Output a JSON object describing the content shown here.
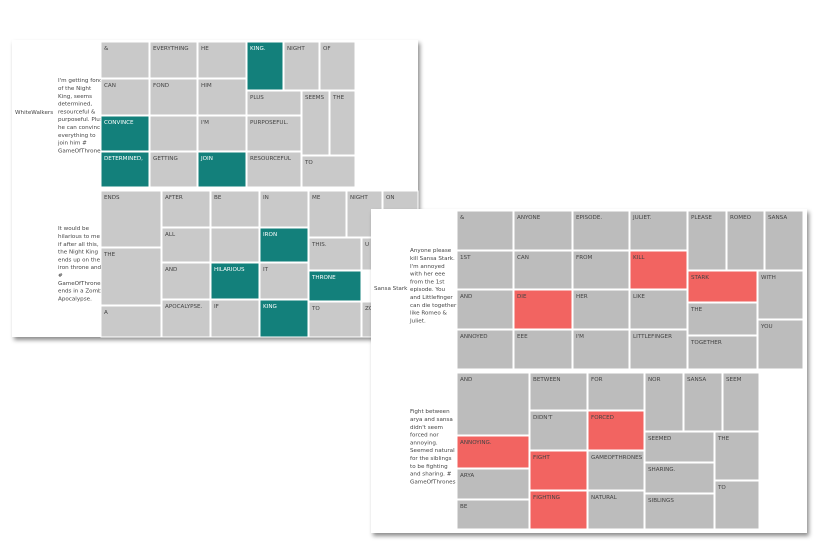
{
  "panels": [
    {
      "label": "WhiteWalkers",
      "groups": [
        {
          "tweet": [
            "I'm getting fond",
            "of the Night",
            "King, seems",
            "determined,",
            "resourceful &",
            "purposeful. Plus",
            "he can convince",
            "everything to",
            "join him #",
            "GameOfThrones"
          ],
          "words": [
            {
              "text": "&",
              "color": "#c9c9c9"
            },
            {
              "text": "EVERYTHING",
              "color": "#c9c9c9"
            },
            {
              "text": "HE",
              "color": "#c9c9c9"
            },
            {
              "text": "KING.",
              "color": "#13807b"
            },
            {
              "text": "NIGHT",
              "color": "#c9c9c9"
            },
            {
              "text": "OF",
              "color": "#c9c9c9"
            },
            {
              "text": "CAN",
              "color": "#c9c9c9"
            },
            {
              "text": "FOND",
              "color": "#c9c9c9"
            },
            {
              "text": "HIM",
              "color": "#c9c9c9"
            },
            {
              "text": "PLUS",
              "color": "#c9c9c9"
            },
            {
              "text": "SEEMS",
              "color": "#c9c9c9"
            },
            {
              "text": "THE",
              "color": "#c9c9c9"
            },
            {
              "text": "CONVINCE",
              "color": "#13807b"
            },
            {
              "text": "I'M",
              "color": "#c9c9c9"
            },
            {
              "text": "PURPOSEFUL.",
              "color": "#c9c9c9"
            },
            {
              "text": "DETERMINED,",
              "color": "#13807b"
            },
            {
              "text": "GETTING",
              "color": "#c9c9c9"
            },
            {
              "text": "JOIN",
              "color": "#13807b"
            },
            {
              "text": "RESOURCEFUL",
              "color": "#c9c9c9"
            },
            {
              "text": "TO",
              "color": "#c9c9c9"
            }
          ]
        },
        {
          "tweet": [
            "It would be",
            "hilarious to me",
            "if after all this,",
            "the Night King",
            "ends up on the",
            "iron throne and",
            "#",
            "GameOfThrones",
            "ends in a Zombie",
            "Apocalypse."
          ],
          "words": [
            {
              "text": "ENDS",
              "color": "#c9c9c9"
            },
            {
              "text": "AFTER",
              "color": "#c9c9c9"
            },
            {
              "text": "BE",
              "color": "#c9c9c9"
            },
            {
              "text": "IN",
              "color": "#c9c9c9"
            },
            {
              "text": "ME",
              "color": "#c9c9c9"
            },
            {
              "text": "NIGHT",
              "color": "#c9c9c9"
            },
            {
              "text": "ON",
              "color": "#c9c9c9"
            },
            {
              "text": "THE",
              "color": "#c9c9c9"
            },
            {
              "text": "ALL",
              "color": "#c9c9c9"
            },
            {
              "text": "IRON",
              "color": "#13807b"
            },
            {
              "text": "THIS.",
              "color": "#c9c9c9"
            },
            {
              "text": "U",
              "color": "#c9c9c9"
            },
            {
              "text": "AND",
              "color": "#c9c9c9"
            },
            {
              "text": "HILARIOUS",
              "color": "#13807b"
            },
            {
              "text": "IT",
              "color": "#c9c9c9"
            },
            {
              "text": "THRONE",
              "color": "#13807b"
            },
            {
              "text": "A",
              "color": "#c9c9c9"
            },
            {
              "text": "APOCALYPSE.",
              "color": "#c9c9c9"
            },
            {
              "text": "IF",
              "color": "#c9c9c9"
            },
            {
              "text": "KING",
              "color": "#13807b"
            },
            {
              "text": "TO",
              "color": "#c9c9c9"
            },
            {
              "text": "ZO",
              "color": "#c9c9c9"
            }
          ]
        }
      ]
    },
    {
      "label": "Sansa Stark",
      "groups": [
        {
          "tweet": [
            "Anyone please",
            "kill Sansa Stark.",
            "I'm annoyed",
            "with her eee",
            "from the 1st",
            "episode. You",
            "and Littlefinger",
            "can die together",
            "like Romeo &",
            "Juliet."
          ],
          "words": [
            {
              "text": "&",
              "color": "#bcbcbc"
            },
            {
              "text": "ANYONE",
              "color": "#bcbcbc"
            },
            {
              "text": "EPISODE.",
              "color": "#bcbcbc"
            },
            {
              "text": "JULIET.",
              "color": "#bcbcbc"
            },
            {
              "text": "PLEASE",
              "color": "#bcbcbc"
            },
            {
              "text": "ROMEO",
              "color": "#bcbcbc"
            },
            {
              "text": "SANSA",
              "color": "#bcbcbc"
            },
            {
              "text": "1ST",
              "color": "#bcbcbc"
            },
            {
              "text": "CAN",
              "color": "#bcbcbc"
            },
            {
              "text": "FROM",
              "color": "#bcbcbc"
            },
            {
              "text": "KILL",
              "color": "#f26461"
            },
            {
              "text": "STARK",
              "color": "#f26461"
            },
            {
              "text": "WITH",
              "color": "#bcbcbc"
            },
            {
              "text": "AND",
              "color": "#bcbcbc"
            },
            {
              "text": "DIE",
              "color": "#f26461"
            },
            {
              "text": "HER",
              "color": "#bcbcbc"
            },
            {
              "text": "LIKE",
              "color": "#bcbcbc"
            },
            {
              "text": "THE",
              "color": "#bcbcbc"
            },
            {
              "text": "YOU",
              "color": "#bcbcbc"
            },
            {
              "text": "ANNOYED",
              "color": "#bcbcbc"
            },
            {
              "text": "EEE",
              "color": "#bcbcbc"
            },
            {
              "text": "I'M",
              "color": "#bcbcbc"
            },
            {
              "text": "LITTLEFINGER",
              "color": "#bcbcbc"
            },
            {
              "text": "TOGETHER",
              "color": "#bcbcbc"
            }
          ]
        },
        {
          "tweet": [
            "Fight between",
            "arya and sansa",
            "didn't seem",
            "forced nor",
            "annoying.",
            "Seemed natural",
            "for the siblings",
            "to be fighting",
            "and sharing. #",
            "GameOfThrones"
          ],
          "words": [
            {
              "text": "AND",
              "color": "#bcbcbc"
            },
            {
              "text": "BETWEEN",
              "color": "#bcbcbc"
            },
            {
              "text": "FOR",
              "color": "#bcbcbc"
            },
            {
              "text": "NOR",
              "color": "#bcbcbc"
            },
            {
              "text": "SANSA",
              "color": "#bcbcbc"
            },
            {
              "text": "SEEM",
              "color": "#bcbcbc"
            },
            {
              "text": "DIDN'T",
              "color": "#bcbcbc"
            },
            {
              "text": "FORCED",
              "color": "#f26461"
            },
            {
              "text": "ANNOYING.",
              "color": "#f26461"
            },
            {
              "text": "SEEMED",
              "color": "#bcbcbc"
            },
            {
              "text": "THE",
              "color": "#bcbcbc"
            },
            {
              "text": "FIGHT",
              "color": "#f26461"
            },
            {
              "text": "GAMEOFTHRONES",
              "color": "#bcbcbc"
            },
            {
              "text": "SHARING.",
              "color": "#bcbcbc"
            },
            {
              "text": "ARYA",
              "color": "#bcbcbc"
            },
            {
              "text": "TO",
              "color": "#bcbcbc"
            },
            {
              "text": "FIGHTING",
              "color": "#f26461"
            },
            {
              "text": "NATURAL",
              "color": "#bcbcbc"
            },
            {
              "text": "SIBLINGS",
              "color": "#bcbcbc"
            },
            {
              "text": "BE",
              "color": "#bcbcbc"
            }
          ]
        }
      ]
    }
  ]
}
